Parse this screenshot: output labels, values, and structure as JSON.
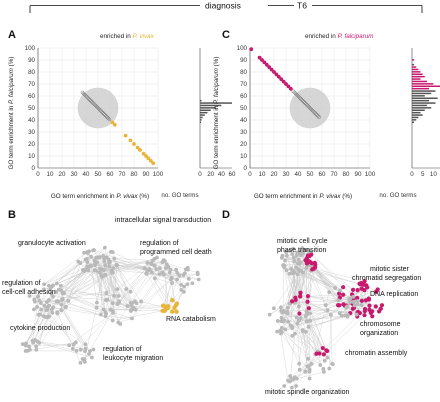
{
  "header": {
    "left": "diagnosis",
    "right": "T6"
  },
  "panel_labels": {
    "A": "A",
    "B": "B",
    "C": "C",
    "D": "D"
  },
  "colors": {
    "vivax": "#E8B53A",
    "falciparum": "#C8196E",
    "neutral": "#9a9a9a",
    "circle": "#cfcfcf"
  },
  "panelA": {
    "legend": {
      "prefix": "enriched in ",
      "species": "P. vivax",
      "color": "#E8B53A"
    },
    "hist_xlabel": "no. GO terms",
    "hist_ticks": [
      "0",
      "20",
      "40",
      "60"
    ]
  },
  "panelC": {
    "legend": {
      "prefix": "enriched in ",
      "species": "P. falciparum",
      "color": "#C8196E"
    },
    "hist_xlabel": "no. GO terms",
    "hist_ticks": [
      "0",
      "5",
      "10",
      "15"
    ]
  },
  "axes": {
    "xlabel_prefix": "GO term enrichment in ",
    "xlabel_species": "P. vivax",
    "xlabel_suffix": " (%)",
    "ylabel_prefix": "GO term enrichment in ",
    "ylabel_species": "P. falciparum",
    "ylabel_suffix": " (%)"
  },
  "chart_data": [
    {
      "id": "A",
      "type": "scatter",
      "xlim": [
        0,
        100
      ],
      "ylim": [
        0,
        100
      ],
      "xticks": [
        0,
        10,
        20,
        30,
        40,
        50,
        60,
        70,
        80,
        90,
        100
      ],
      "yticks": [
        0,
        10,
        20,
        30,
        40,
        50,
        60,
        70,
        80,
        90,
        100
      ],
      "grid": true,
      "circle": {
        "cx": 50,
        "cy": 50,
        "r": 17
      },
      "neutral_range": [
        37,
        60
      ],
      "highlight_points": [
        [
          62,
          38
        ],
        [
          64,
          36
        ],
        [
          73,
          27
        ],
        [
          77,
          23
        ],
        [
          80,
          20
        ],
        [
          83,
          17
        ],
        [
          85,
          15
        ],
        [
          88,
          12
        ],
        [
          90,
          10
        ],
        [
          92,
          8
        ],
        [
          94,
          6
        ],
        [
          96,
          4
        ]
      ],
      "histogram": {
        "xlim": [
          0,
          60
        ],
        "bins": [
          {
            "y": 56,
            "v": 3,
            "hl": false
          },
          {
            "y": 54,
            "v": 60,
            "hl": false
          },
          {
            "y": 52,
            "v": 40,
            "hl": false
          },
          {
            "y": 50,
            "v": 30,
            "hl": false
          },
          {
            "y": 48,
            "v": 20,
            "hl": false
          },
          {
            "y": 46,
            "v": 14,
            "hl": false
          },
          {
            "y": 44,
            "v": 9,
            "hl": false
          },
          {
            "y": 42,
            "v": 5,
            "hl": false
          },
          {
            "y": 40,
            "v": 3,
            "hl": false
          },
          {
            "y": 38,
            "v": 2,
            "hl": false
          }
        ]
      }
    },
    {
      "id": "C",
      "type": "scatter",
      "xlim": [
        0,
        100
      ],
      "ylim": [
        0,
        100
      ],
      "xticks": [
        0,
        10,
        20,
        30,
        40,
        50,
        60,
        70,
        80,
        90,
        100
      ],
      "yticks": [
        0,
        10,
        20,
        30,
        40,
        50,
        60,
        70,
        80,
        90,
        100
      ],
      "grid": true,
      "circle": {
        "cx": 50,
        "cy": 50,
        "r": 17
      },
      "neutral_range": [
        36,
        58
      ],
      "highlight_points": [
        [
          1,
          99
        ],
        [
          8,
          92
        ],
        [
          10,
          90
        ],
        [
          12,
          88
        ],
        [
          14,
          86
        ],
        [
          16,
          84
        ],
        [
          18,
          82
        ],
        [
          20,
          80
        ],
        [
          22,
          78
        ],
        [
          24,
          76
        ],
        [
          26,
          74
        ],
        [
          28,
          72
        ],
        [
          30,
          70
        ],
        [
          32,
          68
        ],
        [
          34,
          66
        ]
      ],
      "histogram": {
        "xlim": [
          0,
          15
        ],
        "bins": [
          {
            "y": 90,
            "v": 1,
            "hl": true
          },
          {
            "y": 86,
            "v": 1,
            "hl": false
          },
          {
            "y": 84,
            "v": 2,
            "hl": true
          },
          {
            "y": 82,
            "v": 3,
            "hl": true
          },
          {
            "y": 80,
            "v": 4,
            "hl": true
          },
          {
            "y": 78,
            "v": 5,
            "hl": true
          },
          {
            "y": 76,
            "v": 6,
            "hl": true
          },
          {
            "y": 74,
            "v": 4,
            "hl": true
          },
          {
            "y": 72,
            "v": 7,
            "hl": true
          },
          {
            "y": 70,
            "v": 10,
            "hl": true
          },
          {
            "y": 68,
            "v": 14,
            "hl": true
          },
          {
            "y": 66,
            "v": 8,
            "hl": true
          },
          {
            "y": 64,
            "v": 11,
            "hl": false
          },
          {
            "y": 62,
            "v": 9,
            "hl": false
          },
          {
            "y": 60,
            "v": 6,
            "hl": false
          },
          {
            "y": 58,
            "v": 12,
            "hl": false
          },
          {
            "y": 56,
            "v": 8,
            "hl": false
          },
          {
            "y": 54,
            "v": 11,
            "hl": false
          },
          {
            "y": 52,
            "v": 7,
            "hl": false
          },
          {
            "y": 50,
            "v": 9,
            "hl": false
          },
          {
            "y": 48,
            "v": 6,
            "hl": false
          },
          {
            "y": 46,
            "v": 4,
            "hl": false
          },
          {
            "y": 44,
            "v": 5,
            "hl": false
          },
          {
            "y": 42,
            "v": 3,
            "hl": false
          },
          {
            "y": 40,
            "v": 2,
            "hl": false
          },
          {
            "y": 38,
            "v": 1,
            "hl": false
          }
        ]
      }
    }
  ],
  "networkB": {
    "labels": [
      "intracellular signal transduction",
      "granulocyte activation",
      "regulation of",
      "programmed cell death",
      "regulation of",
      "cell-cell adhesion",
      "RNA catabolism",
      "cytokine production",
      "regulation of",
      "leukocyte migration"
    ]
  },
  "networkD": {
    "labels": [
      "mitotic cell cycle",
      "phase transition",
      "mitotic sister",
      "chromatid segregation",
      "DNA replication",
      "chromosome",
      "organization",
      "chromatin assembly",
      "mitotic spindle organization"
    ]
  }
}
